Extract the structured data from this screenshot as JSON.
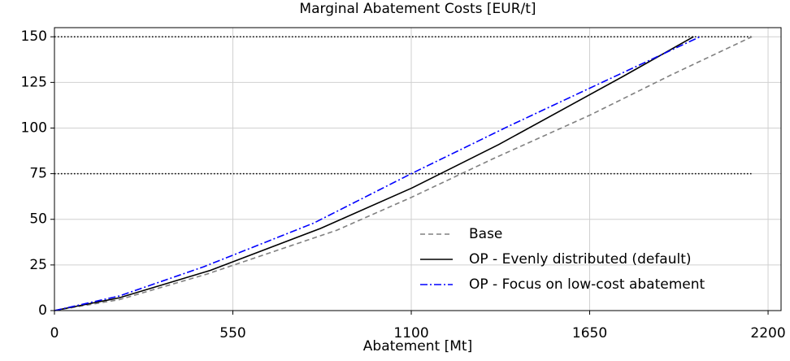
{
  "chart_data": {
    "type": "line",
    "title": "Marginal Abatement Costs [EUR/t]",
    "xlabel": "Abatement [Mt]",
    "xlim": [
      0,
      2240
    ],
    "xticks": [
      0,
      550,
      1100,
      1650,
      2200
    ],
    "ylim": [
      0,
      155
    ],
    "yticks": [
      0,
      25,
      50,
      75,
      100,
      125,
      150
    ],
    "grid": true,
    "legend": "lower right",
    "reference_lines": [
      {
        "y": 75,
        "x": [
          0,
          2150
        ]
      },
      {
        "y": 150,
        "x": [
          0,
          2150
        ]
      }
    ],
    "series": [
      {
        "name": "Base",
        "color": "#808080",
        "linestyle": "dashed",
        "x": [
          0,
          200,
          470,
          870,
          1100,
          1350,
          1650,
          1900,
          2150
        ],
        "values": [
          0,
          6,
          20,
          44,
          62,
          83,
          107,
          129,
          150
        ]
      },
      {
        "name": "OP - Evenly distributed (default)",
        "color": "#000000",
        "linestyle": "solid",
        "x": [
          0,
          200,
          480,
          820,
          1100,
          1370,
          1750,
          1970
        ],
        "values": [
          0,
          7,
          22,
          45,
          67,
          91,
          128,
          150
        ]
      },
      {
        "name": "OP - Focus on low-cost abatement",
        "color": "#0000ff",
        "linestyle": "dashdot",
        "x": [
          0,
          200,
          460,
          800,
          1100,
          1400,
          1700,
          1990
        ],
        "values": [
          0,
          8,
          24,
          48,
          75,
          101,
          126,
          150
        ]
      }
    ]
  }
}
